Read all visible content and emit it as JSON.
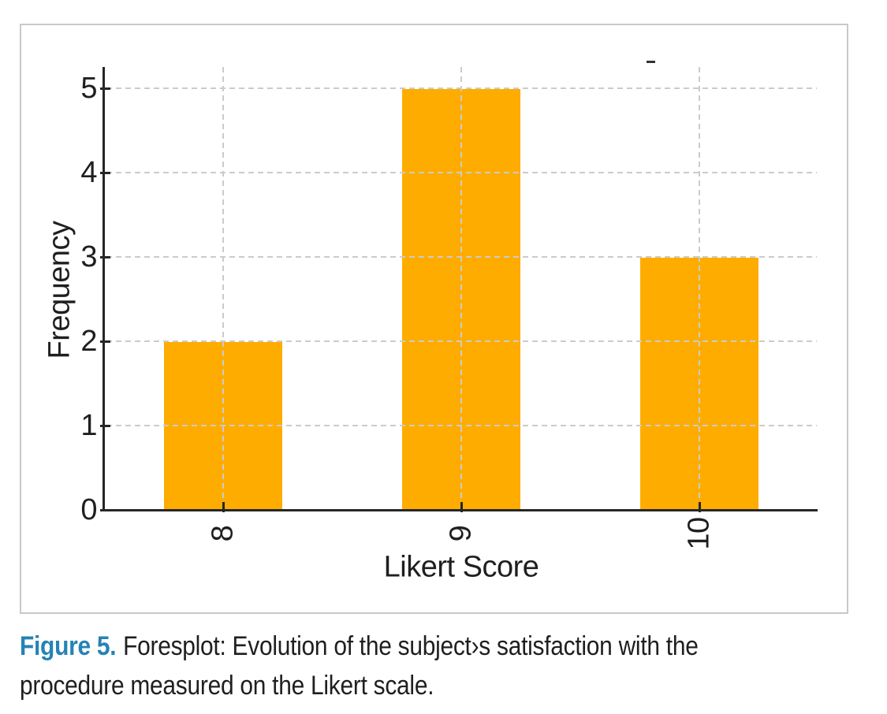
{
  "caption": {
    "label": "Figure 5.",
    "text_line1": "Foresplot: Evolution of the subject›s satisfaction with the",
    "text_line2": "procedure measured on the Likert scale."
  },
  "chart_data": {
    "type": "bar",
    "title": "",
    "categories": [
      "8",
      "9",
      "10"
    ],
    "values": [
      2,
      5,
      3
    ],
    "xlabel": "Likert Score",
    "ylabel": "Frequency",
    "ylim": [
      0,
      5
    ],
    "yticks": [
      0,
      1,
      2,
      3,
      4,
      5
    ],
    "grid": "dashed horizontal and vertical gridlines, drawn above bars",
    "legend": "none",
    "x_tick_rotation": -90,
    "bar_color": "#FFAC00"
  },
  "colors": {
    "bar": "#FFAC00",
    "grid": "#CBCBCB",
    "axis": "#262626",
    "text": "#1F1F1F",
    "caption_label": "#2583B5",
    "card_border": "#C8C8C8",
    "background": "#FFFFFF"
  }
}
